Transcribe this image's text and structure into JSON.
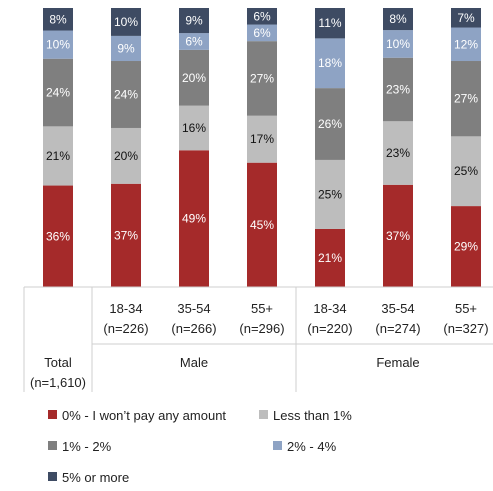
{
  "chart_data": {
    "type": "bar",
    "stacked": true,
    "percent": true,
    "categories": [
      {
        "label": "Total",
        "n": "(n=1,610)",
        "group": ""
      },
      {
        "label": "18-34",
        "n": "(n=226)",
        "group": "Male"
      },
      {
        "label": "35-54",
        "n": "(n=266)",
        "group": "Male"
      },
      {
        "label": "55+",
        "n": "(n=296)",
        "group": "Male"
      },
      {
        "label": "18-34",
        "n": "(n=220)",
        "group": "Female"
      },
      {
        "label": "35-54",
        "n": "(n=274)",
        "group": "Female"
      },
      {
        "label": "55+",
        "n": "(n=327)",
        "group": "Female"
      }
    ],
    "groups": [
      "Male",
      "Female"
    ],
    "series": [
      {
        "name": "0% - I won't pay any amount",
        "color": "#a52a2a",
        "label_color": "#ffffff",
        "values": [
          36,
          37,
          49,
          45,
          21,
          37,
          29
        ]
      },
      {
        "name": "Less than 1%",
        "color": "#bdbdbd",
        "label_color": "#111111",
        "values": [
          21,
          20,
          16,
          17,
          25,
          23,
          25
        ]
      },
      {
        "name": "1% - 2%",
        "color": "#7f7f7f",
        "label_color": "#ffffff",
        "values": [
          24,
          24,
          20,
          27,
          26,
          23,
          27
        ]
      },
      {
        "name": "2% - 4%",
        "color": "#8ea3c4",
        "label_color": "#ffffff",
        "values": [
          10,
          9,
          6,
          6,
          18,
          10,
          12
        ]
      },
      {
        "name": "5% or more",
        "color": "#3e4b63",
        "label_color": "#ffffff",
        "values": [
          8,
          10,
          9,
          6,
          11,
          8,
          7
        ]
      }
    ],
    "legend": [
      {
        "name": "0% - I won’t pay any amount",
        "color": "#a52a2a"
      },
      {
        "name": "Less than 1%",
        "color": "#bdbdbd"
      },
      {
        "name": "1% - 2%",
        "color": "#7f7f7f"
      },
      {
        "name": "2% - 4%",
        "color": "#8ea3c4"
      },
      {
        "name": "5% or more",
        "color": "#3e4b63"
      }
    ],
    "legend_position": "bottom"
  }
}
